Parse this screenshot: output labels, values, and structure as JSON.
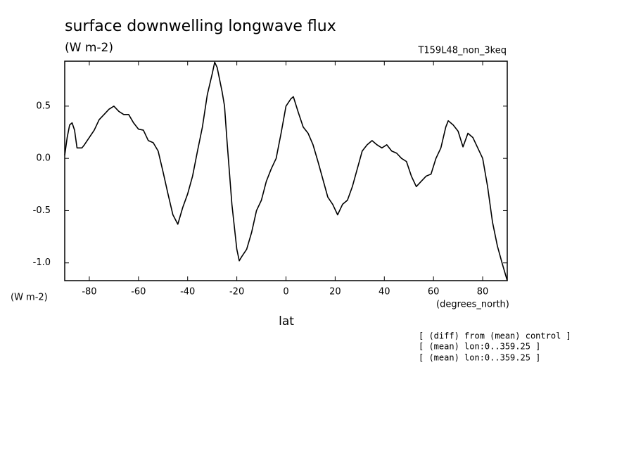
{
  "chart_data": {
    "type": "line",
    "title": "surface downwelling longwave flux",
    "subtitle": "(W m-2)",
    "run_label": "T159L48_non_3keq",
    "y_unit_label": "(W m-2)",
    "x_unit_label": "(degrees_north)",
    "x_label": "lat",
    "notes": [
      "[ (diff) from (mean) control ]",
      "[ (mean) lon:0..359.25 ]",
      "[ (mean) lon:0..359.25 ]"
    ],
    "color": "#000000",
    "x": [
      -90,
      -89,
      -88,
      -87,
      -86,
      -85,
      -83,
      -82,
      -80,
      -78,
      -76,
      -74,
      -72,
      -70,
      -68,
      -66,
      -64,
      -62,
      -60,
      -58,
      -56,
      -54,
      -52,
      -50,
      -48,
      -46,
      -44,
      -42,
      -40,
      -38,
      -36,
      -34,
      -32,
      -30,
      -29,
      -28,
      -26,
      -25,
      -24,
      -22,
      -20,
      -19,
      -18,
      -16,
      -14,
      -12,
      -10,
      -8,
      -6,
      -4,
      -2,
      0,
      2,
      3,
      5,
      7,
      9,
      11,
      13,
      15,
      17,
      19,
      21,
      23,
      25,
      27,
      29,
      31,
      33,
      35,
      37,
      39,
      41,
      43,
      45,
      47,
      49,
      51,
      53,
      55,
      57,
      59,
      61,
      63,
      64,
      65,
      66,
      68,
      70,
      72,
      74,
      76,
      78,
      80,
      82,
      84,
      86,
      88,
      90
    ],
    "values": [
      0.03,
      0.2,
      0.32,
      0.34,
      0.27,
      0.1,
      0.1,
      0.13,
      0.2,
      0.27,
      0.37,
      0.42,
      0.47,
      0.5,
      0.45,
      0.42,
      0.42,
      0.34,
      0.28,
      0.27,
      0.17,
      0.15,
      0.07,
      -0.13,
      -0.34,
      -0.54,
      -0.63,
      -0.47,
      -0.34,
      -0.17,
      0.07,
      0.3,
      0.61,
      0.81,
      0.92,
      0.87,
      0.64,
      0.5,
      0.17,
      -0.44,
      -0.87,
      -0.98,
      -0.94,
      -0.87,
      -0.71,
      -0.5,
      -0.4,
      -0.22,
      -0.1,
      0,
      0.24,
      0.5,
      0.57,
      0.59,
      0.44,
      0.3,
      0.24,
      0.13,
      -0.03,
      -0.2,
      -0.37,
      -0.44,
      -0.54,
      -0.44,
      -0.4,
      -0.27,
      -0.1,
      0.07,
      0.13,
      0.17,
      0.13,
      0.1,
      0.13,
      0.07,
      0.05,
      0,
      -0.03,
      -0.17,
      -0.27,
      -0.22,
      -0.17,
      -0.15,
      0,
      0.1,
      0.2,
      0.3,
      0.36,
      0.32,
      0.26,
      0.11,
      0.24,
      0.2,
      0.1,
      0,
      -0.27,
      -0.61,
      -0.84,
      -1.01,
      -1.17
    ],
    "xlim": [
      -90,
      90
    ],
    "xticks": [
      -80,
      -60,
      -40,
      -20,
      0,
      20,
      40,
      60,
      80
    ],
    "ylim": [
      -1.17,
      0.93
    ],
    "yticks": [
      {
        "value": -1,
        "label": "-1.0"
      },
      {
        "value": -0.5,
        "label": "-0.5"
      },
      {
        "value": 0,
        "label": "0.0"
      },
      {
        "value": 0.5,
        "label": "0.5"
      }
    ]
  }
}
